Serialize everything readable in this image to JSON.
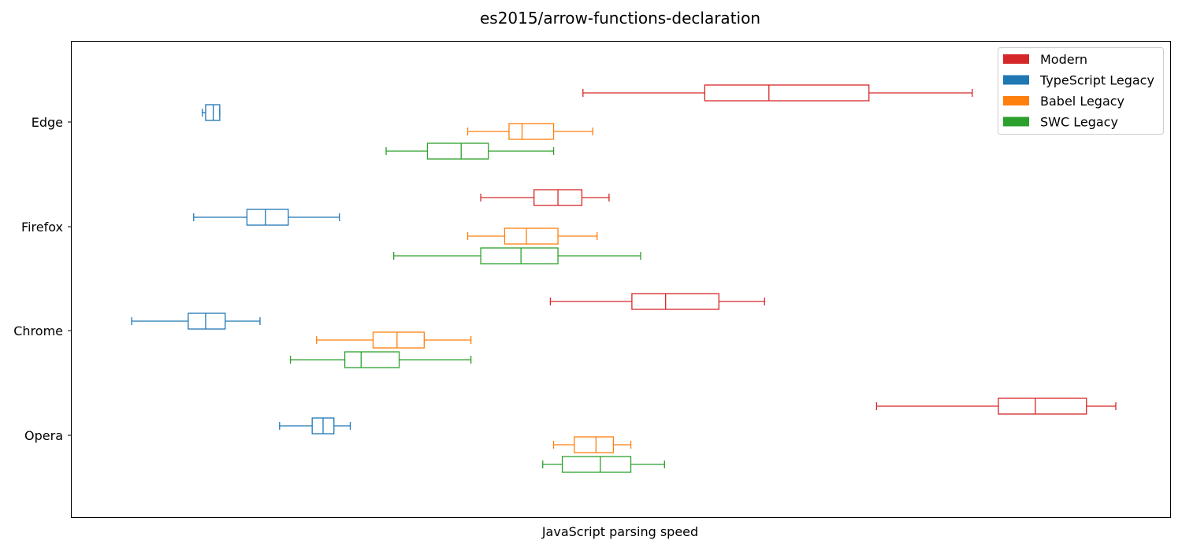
{
  "chart_data": {
    "type": "boxplot",
    "orientation": "horizontal",
    "title": "es2015/arrow-functions-declaration",
    "xlabel": "JavaScript parsing speed",
    "ylabel": "",
    "x_ticks_visible": false,
    "xlim": [
      0,
      100
    ],
    "grid": false,
    "legend_position": "top-right",
    "categories": [
      "Edge",
      "Firefox",
      "Chrome",
      "Opera"
    ],
    "series": [
      {
        "name": "Modern",
        "color": "#d62728",
        "boxes": [
          {
            "whislo": 46,
            "q1": 57.2,
            "med": 63.1,
            "q3": 72.3,
            "whishi": 81.8
          },
          {
            "whislo": 36.6,
            "q1": 41.5,
            "med": 43.7,
            "q3": 45.9,
            "whishi": 48.4
          },
          {
            "whislo": 43,
            "q1": 50.5,
            "med": 53.6,
            "q3": 58.5,
            "whishi": 62.7
          },
          {
            "whislo": 73,
            "q1": 84.2,
            "med": 87.6,
            "q3": 92.3,
            "whishi": 95
          }
        ]
      },
      {
        "name": "TypeScript Legacy",
        "color": "#1f77b4",
        "boxes": [
          {
            "whislo": 11,
            "q1": 11.3,
            "med": 12,
            "q3": 12.6,
            "whishi": 12.6
          },
          {
            "whislo": 10.2,
            "q1": 15.1,
            "med": 16.8,
            "q3": 18.9,
            "whishi": 23.6
          },
          {
            "whislo": 4.5,
            "q1": 9.7,
            "med": 11.3,
            "q3": 13.1,
            "whishi": 16.3
          },
          {
            "whislo": 18.1,
            "q1": 21.1,
            "med": 22.1,
            "q3": 23.1,
            "whishi": 24.6
          }
        ]
      },
      {
        "name": "Babel Legacy",
        "color": "#ff7f0e",
        "boxes": [
          {
            "whislo": 35.4,
            "q1": 39.2,
            "med": 40.4,
            "q3": 43.3,
            "whishi": 46.9
          },
          {
            "whislo": 35.4,
            "q1": 38.8,
            "med": 40.8,
            "q3": 43.7,
            "whishi": 47.3
          },
          {
            "whislo": 21.5,
            "q1": 26.7,
            "med": 28.9,
            "q3": 31.4,
            "whishi": 35.7
          },
          {
            "whislo": 43.3,
            "q1": 45.2,
            "med": 47.2,
            "q3": 48.8,
            "whishi": 50.4
          }
        ]
      },
      {
        "name": "SWC Legacy",
        "color": "#2ca02c",
        "boxes": [
          {
            "whislo": 27.9,
            "q1": 31.7,
            "med": 34.8,
            "q3": 37.3,
            "whishi": 43.3
          },
          {
            "whislo": 28.6,
            "q1": 36.6,
            "med": 40.3,
            "q3": 43.7,
            "whishi": 51.3
          },
          {
            "whislo": 19.1,
            "q1": 24.1,
            "med": 25.6,
            "q3": 29.1,
            "whishi": 35.7
          },
          {
            "whislo": 42.3,
            "q1": 44.1,
            "med": 47.6,
            "q3": 50.4,
            "whishi": 53.5
          }
        ]
      }
    ]
  }
}
